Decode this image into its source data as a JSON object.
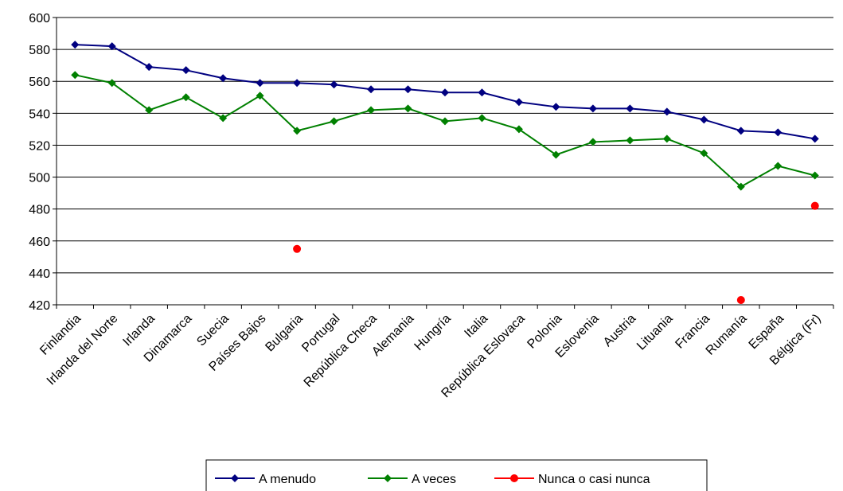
{
  "chart_data": {
    "type": "line",
    "title": "",
    "xlabel": "",
    "ylabel": "",
    "ylim": [
      420,
      600
    ],
    "yticks": [
      420,
      440,
      460,
      480,
      500,
      520,
      540,
      560,
      580,
      600
    ],
    "grid": "horizontal",
    "legend_position": "bottom",
    "categories": [
      "Finlandia",
      "Irlanda del Norte",
      "Irlanda",
      "Dinamarca",
      "Suecia",
      "Países Bajos",
      "Bulgaria",
      "Portugal",
      "República Checa",
      "Alemania",
      "Hungría",
      "Italia",
      "República Eslovaca",
      "Polonia",
      "Eslovenia",
      "Austria",
      "Lituania",
      "Francia",
      "Rumanía",
      "España",
      "Bélgica (Fr)"
    ],
    "series": [
      {
        "name": "A menudo",
        "color": "#000080",
        "marker": "diamond",
        "values": [
          583,
          582,
          569,
          567,
          562,
          559,
          559,
          558,
          555,
          555,
          553,
          553,
          547,
          544,
          543,
          543,
          541,
          536,
          529,
          528,
          524
        ]
      },
      {
        "name": "A veces",
        "color": "#008000",
        "marker": "diamond",
        "values": [
          564,
          559,
          542,
          550,
          537,
          551,
          529,
          535,
          542,
          543,
          535,
          537,
          530,
          514,
          522,
          523,
          524,
          515,
          494,
          507,
          501
        ]
      },
      {
        "name": "Nunca o casi nunca",
        "color": "#ff0000",
        "marker": "circle",
        "values": [
          null,
          null,
          null,
          null,
          null,
          null,
          455,
          null,
          null,
          null,
          null,
          null,
          null,
          null,
          null,
          null,
          null,
          null,
          423,
          null,
          482
        ]
      }
    ]
  }
}
